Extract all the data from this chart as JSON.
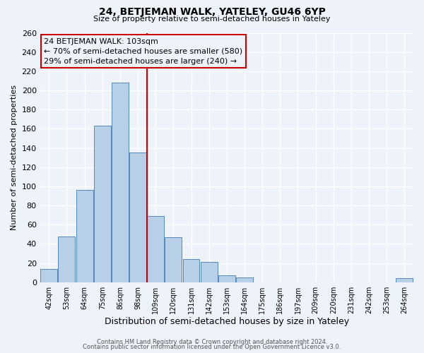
{
  "title": "24, BETJEMAN WALK, YATELEY, GU46 6YP",
  "subtitle": "Size of property relative to semi-detached houses in Yateley",
  "xlabel": "Distribution of semi-detached houses by size in Yateley",
  "ylabel": "Number of semi-detached properties",
  "bin_labels": [
    "42sqm",
    "53sqm",
    "64sqm",
    "75sqm",
    "86sqm",
    "98sqm",
    "109sqm",
    "120sqm",
    "131sqm",
    "142sqm",
    "153sqm",
    "164sqm",
    "175sqm",
    "186sqm",
    "197sqm",
    "209sqm",
    "220sqm",
    "231sqm",
    "242sqm",
    "253sqm",
    "264sqm"
  ],
  "bar_heights": [
    14,
    48,
    96,
    163,
    208,
    135,
    69,
    47,
    24,
    21,
    7,
    5,
    0,
    0,
    0,
    0,
    0,
    0,
    0,
    0,
    4
  ],
  "bar_color": "#b8cfe8",
  "bar_edge_color": "#5588bb",
  "property_line_color": "#cc0000",
  "annotation_title": "24 BETJEMAN WALK: 103sqm",
  "annotation_line1": "← 70% of semi-detached houses are smaller (580)",
  "annotation_line2": "29% of semi-detached houses are larger (240) →",
  "annotation_box_edge": "#cc0000",
  "ylim": [
    0,
    260
  ],
  "yticks": [
    0,
    20,
    40,
    60,
    80,
    100,
    120,
    140,
    160,
    180,
    200,
    220,
    240,
    260
  ],
  "footer_line1": "Contains HM Land Registry data © Crown copyright and database right 2024.",
  "footer_line2": "Contains public sector information licensed under the Open Government Licence v3.0.",
  "background_color": "#eef2f9"
}
